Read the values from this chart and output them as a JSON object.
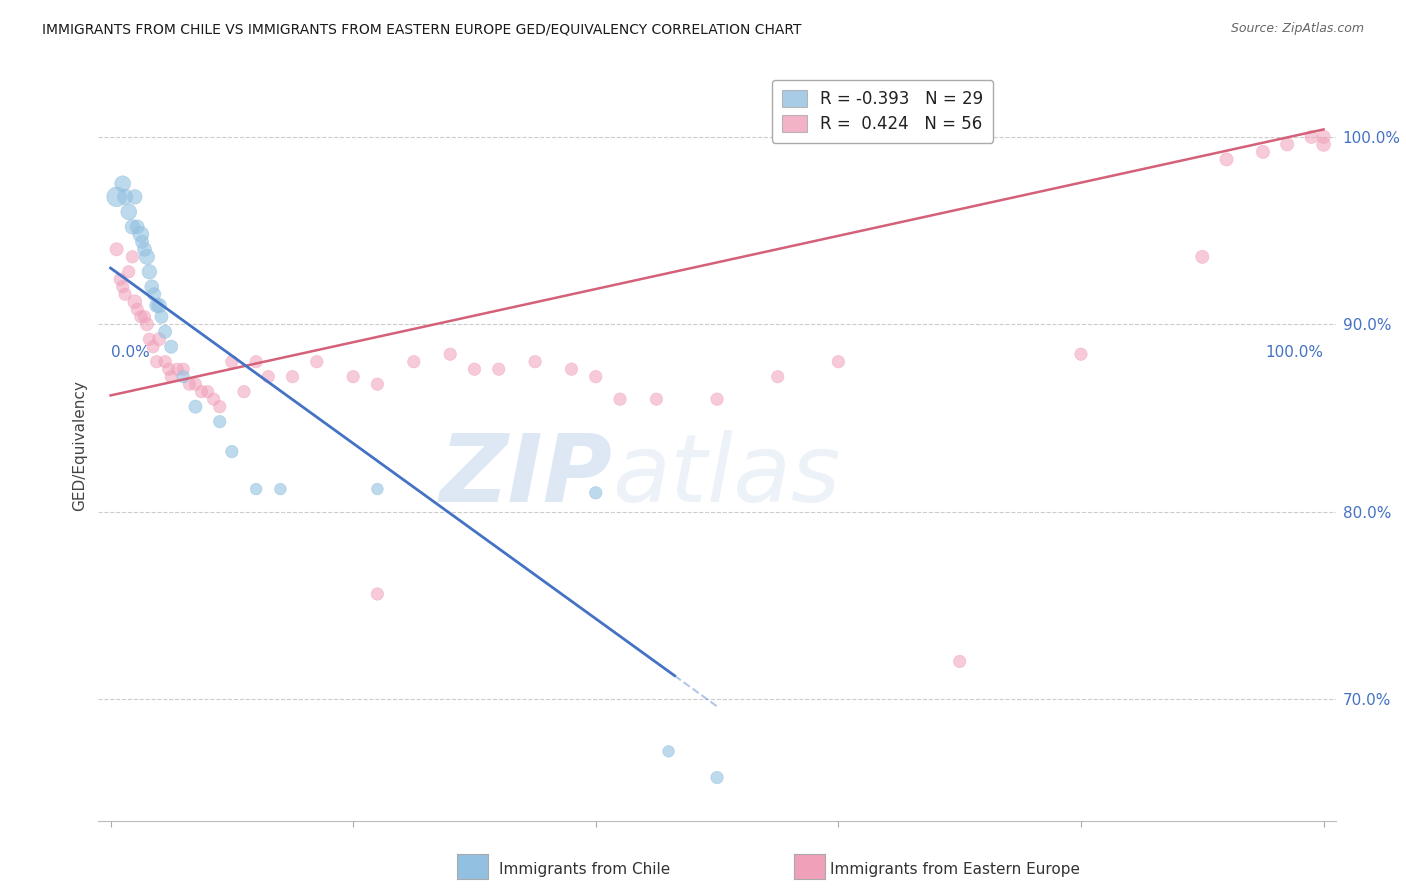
{
  "title": "IMMIGRANTS FROM CHILE VS IMMIGRANTS FROM EASTERN EUROPE GED/EQUIVALENCY CORRELATION CHART",
  "source": "Source: ZipAtlas.com",
  "ylabel": "GED/Equivalency",
  "ytick_labels": [
    "70.0%",
    "80.0%",
    "90.0%",
    "100.0%"
  ],
  "ytick_values": [
    0.7,
    0.8,
    0.9,
    1.0
  ],
  "xlim": [
    -0.01,
    1.01
  ],
  "ylim": [
    0.635,
    1.035
  ],
  "legend_blue_r": "R = -0.393",
  "legend_blue_n": "N = 29",
  "legend_pink_r": "R =  0.424",
  "legend_pink_n": "N = 56",
  "blue_color": "#92c0e0",
  "pink_color": "#f0a0b8",
  "blue_line_color": "#4472c4",
  "pink_line_color": "#d4607a",
  "watermark_zip": "ZIP",
  "watermark_atlas": "atlas",
  "bottom_legend_blue": "Immigrants from Chile",
  "bottom_legend_pink": "Immigrants from Eastern Europe",
  "blue_points_x": [
    0.005,
    0.01,
    0.012,
    0.015,
    0.018,
    0.02,
    0.022,
    0.025,
    0.026,
    0.028,
    0.03,
    0.032,
    0.034,
    0.036,
    0.038,
    0.04,
    0.042,
    0.045,
    0.05,
    0.06,
    0.07,
    0.09,
    0.1,
    0.12,
    0.14,
    0.22,
    0.4,
    0.46,
    0.5
  ],
  "blue_points_y": [
    0.968,
    0.975,
    0.968,
    0.96,
    0.952,
    0.968,
    0.952,
    0.948,
    0.944,
    0.94,
    0.936,
    0.928,
    0.92,
    0.916,
    0.91,
    0.91,
    0.904,
    0.896,
    0.888,
    0.872,
    0.856,
    0.848,
    0.832,
    0.812,
    0.812,
    0.812,
    0.81,
    0.672,
    0.658
  ],
  "blue_sizes": [
    200,
    130,
    120,
    130,
    110,
    110,
    100,
    130,
    90,
    100,
    120,
    110,
    100,
    90,
    100,
    110,
    90,
    90,
    90,
    80,
    90,
    80,
    80,
    70,
    70,
    70,
    80,
    70,
    80
  ],
  "pink_points_x": [
    0.005,
    0.008,
    0.01,
    0.012,
    0.015,
    0.018,
    0.02,
    0.022,
    0.025,
    0.028,
    0.03,
    0.032,
    0.035,
    0.038,
    0.04,
    0.045,
    0.048,
    0.05,
    0.055,
    0.06,
    0.065,
    0.07,
    0.075,
    0.08,
    0.085,
    0.09,
    0.1,
    0.11,
    0.12,
    0.13,
    0.15,
    0.17,
    0.2,
    0.22,
    0.25,
    0.28,
    0.3,
    0.32,
    0.35,
    0.38,
    0.4,
    0.42,
    0.45,
    0.5,
    0.55,
    0.6,
    0.22,
    0.7,
    0.8,
    0.9,
    0.92,
    0.95,
    0.97,
    0.99,
    1.0,
    1.0
  ],
  "pink_points_y": [
    0.94,
    0.924,
    0.92,
    0.916,
    0.928,
    0.936,
    0.912,
    0.908,
    0.904,
    0.904,
    0.9,
    0.892,
    0.888,
    0.88,
    0.892,
    0.88,
    0.876,
    0.872,
    0.876,
    0.876,
    0.868,
    0.868,
    0.864,
    0.864,
    0.86,
    0.856,
    0.88,
    0.864,
    0.88,
    0.872,
    0.872,
    0.88,
    0.872,
    0.868,
    0.88,
    0.884,
    0.876,
    0.876,
    0.88,
    0.876,
    0.872,
    0.86,
    0.86,
    0.86,
    0.872,
    0.88,
    0.756,
    0.72,
    0.884,
    0.936,
    0.988,
    0.992,
    0.996,
    1.0,
    0.996,
    1.0
  ],
  "pink_sizes": [
    90,
    80,
    80,
    80,
    80,
    80,
    100,
    80,
    80,
    80,
    90,
    80,
    80,
    80,
    90,
    80,
    80,
    80,
    80,
    80,
    80,
    80,
    80,
    80,
    80,
    80,
    80,
    80,
    80,
    80,
    80,
    80,
    80,
    80,
    80,
    80,
    80,
    80,
    80,
    80,
    80,
    80,
    80,
    80,
    80,
    80,
    80,
    80,
    80,
    90,
    90,
    90,
    90,
    90,
    100,
    90
  ],
  "blue_line_x0": 0.0,
  "blue_line_y0": 0.93,
  "blue_line_x1": 0.5,
  "blue_line_y1": 0.696,
  "blue_line_solid_end_x": 0.465,
  "pink_line_x0": 0.0,
  "pink_line_y0": 0.862,
  "pink_line_x1": 1.0,
  "pink_line_y1": 1.004,
  "grid_color": "#cccccc",
  "background_color": "#ffffff",
  "ytick_color": "#4472c4",
  "xtick_color": "#4472c4"
}
